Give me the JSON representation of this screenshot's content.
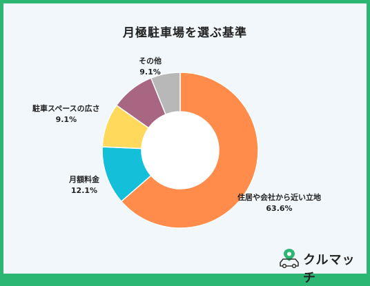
{
  "chart_data": {
    "type": "pie",
    "title": "月極駐車場を選ぶ基準",
    "categories": [
      "住居や会社から近い立地",
      "月額料金",
      "駐車スペースの広さ",
      "その他"
    ],
    "values": [
      63.6,
      12.1,
      9.1,
      9.1
    ],
    "value_labels": [
      "63.6%",
      "12.1%",
      "9.1%",
      "9.1%"
    ],
    "colors": [
      "#ff8c4a",
      "#14bfd9",
      "#ffd95c",
      "#a86682"
    ],
    "remainder_value": 6.1,
    "remainder_color": "#b8b8b8",
    "donut": true
  },
  "brand": {
    "name": "クルマッチ",
    "icon": "car-pin-icon",
    "accent": "#2bb673"
  }
}
